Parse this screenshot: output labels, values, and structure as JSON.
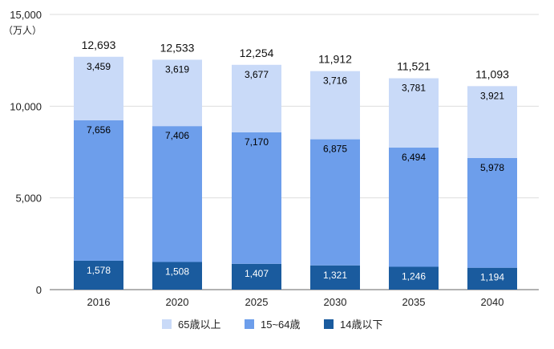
{
  "chart_data": {
    "type": "bar",
    "stacked": true,
    "unit_label": "（万人）",
    "categories": [
      "2016",
      "2020",
      "2025",
      "2030",
      "2035",
      "2040"
    ],
    "series": [
      {
        "name": "14歳以下",
        "color": "#1a5b9e",
        "label_color": "#ffffff",
        "values": [
          1578,
          1508,
          1407,
          1321,
          1246,
          1194
        ]
      },
      {
        "name": "15~64歳",
        "color": "#6d9eeb",
        "label_color": "#000000",
        "values": [
          7656,
          7406,
          7170,
          6875,
          6494,
          5978
        ]
      },
      {
        "name": "65歳以上",
        "color": "#c9daf8",
        "label_color": "#000000",
        "values": [
          3459,
          3619,
          3677,
          3716,
          3781,
          3921
        ]
      }
    ],
    "totals": [
      12693,
      12533,
      12254,
      11912,
      11521,
      11093
    ],
    "ylim": [
      0,
      15000
    ],
    "yticks": [
      0,
      5000,
      10000,
      15000
    ],
    "grid": true,
    "legend_position": "bottom",
    "legend_order": [
      "65歳以上",
      "15~64歳",
      "14歳以下"
    ],
    "gridline_color": "#dddddd",
    "axis_text_color": "#222222"
  }
}
